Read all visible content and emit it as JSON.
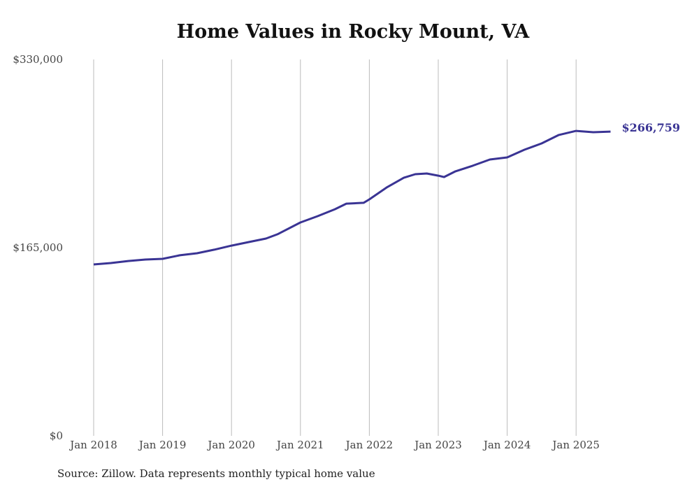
{
  "chart_data": {
    "type": "line",
    "title": "Home Values in Rocky Mount, VA",
    "source": "Source: Zillow. Data represents monthly typical home value",
    "xlabel": "",
    "ylabel": "",
    "ylim": [
      0,
      330000
    ],
    "y_ticks": [
      0,
      165000,
      330000
    ],
    "y_tick_labels": [
      "$0",
      "$165,000",
      "$330,000"
    ],
    "x_tick_labels": [
      "Jan 2018",
      "Jan 2019",
      "Jan 2020",
      "Jan 2021",
      "Jan 2022",
      "Jan 2023",
      "Jan 2024",
      "Jan 2025"
    ],
    "grid": "vertical",
    "line_color": "#3a3494",
    "end_label": "$266,759",
    "series": [
      {
        "name": "Typical home value",
        "x": [
          "2018-01",
          "2018-04",
          "2018-07",
          "2018-10",
          "2019-01",
          "2019-04",
          "2019-07",
          "2019-10",
          "2020-01",
          "2020-04",
          "2020-07",
          "2020-09",
          "2021-01",
          "2021-04",
          "2021-07",
          "2021-09",
          "2021-12",
          "2022-01",
          "2022-04",
          "2022-07",
          "2022-09",
          "2022-11",
          "2023-01",
          "2023-02",
          "2023-04",
          "2023-07",
          "2023-10",
          "2024-01",
          "2024-04",
          "2024-07",
          "2024-10",
          "2025-01",
          "2025-04",
          "2025-07"
        ],
        "values": [
          150300,
          151500,
          153300,
          154600,
          155200,
          158300,
          160100,
          163200,
          166800,
          169900,
          173000,
          176700,
          187100,
          192600,
          198700,
          203600,
          204300,
          207300,
          217700,
          226300,
          229400,
          230000,
          228100,
          226900,
          231900,
          236800,
          242300,
          244100,
          250900,
          256400,
          263800,
          267400,
          266200,
          266759
        ]
      }
    ]
  }
}
